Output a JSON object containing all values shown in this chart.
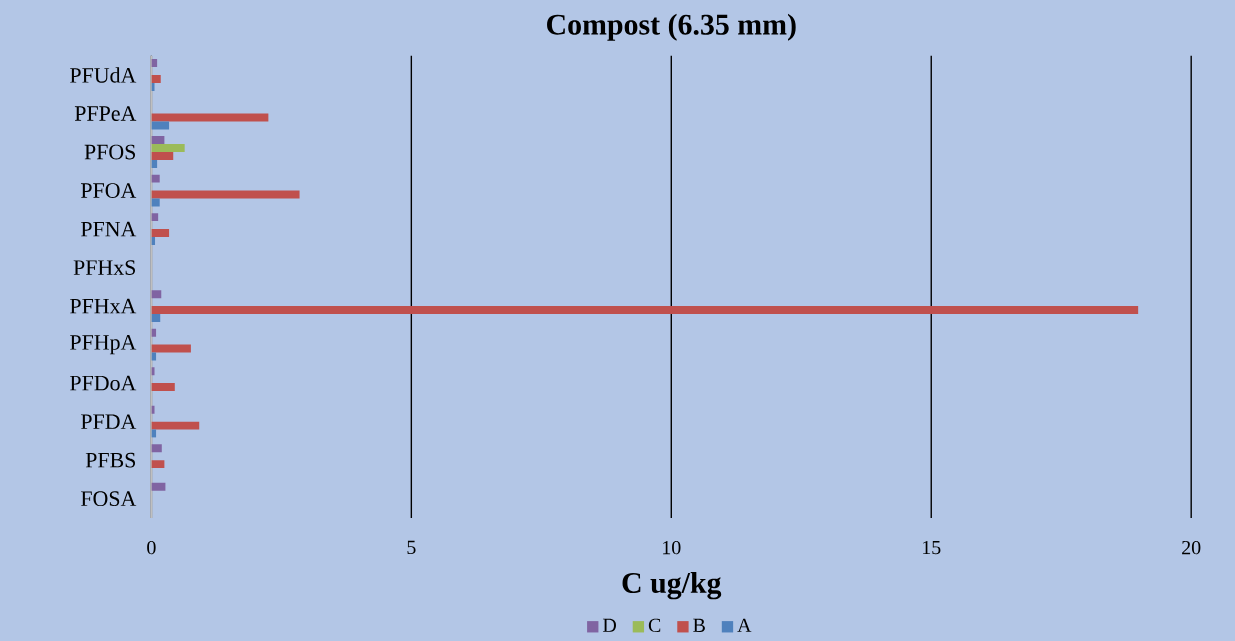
{
  "chart_data": {
    "type": "bar",
    "orientation": "horizontal",
    "title": "Compost (6.35 mm)",
    "xlabel": "C ug/kg",
    "categories": [
      "PFUdA",
      "PFPeA",
      "PFOS",
      "PFOA",
      "PFNA",
      "PFHxS",
      "PFHxA",
      "PFHpA",
      "PFDoA",
      "PFDA",
      "PFBS",
      "FOSA"
    ],
    "series": [
      {
        "name": "D",
        "color": "#8064a2",
        "values": [
          0.11,
          null,
          0.25,
          0.16,
          0.13,
          null,
          0.19,
          0.09,
          0.06,
          0.06,
          0.2,
          0.27
        ]
      },
      {
        "name": "C",
        "color": "#9bbb59",
        "values": [
          null,
          null,
          0.64,
          null,
          null,
          null,
          null,
          null,
          null,
          null,
          null,
          null
        ]
      },
      {
        "name": "B",
        "color": "#c0504d",
        "values": [
          0.18,
          2.25,
          0.42,
          2.85,
          0.34,
          null,
          18.98,
          0.76,
          0.45,
          0.92,
          0.25,
          null
        ]
      },
      {
        "name": "A",
        "color": "#4f81bd",
        "values": [
          0.06,
          0.34,
          0.11,
          0.16,
          0.07,
          null,
          0.17,
          0.09,
          null,
          0.09,
          null,
          null
        ]
      }
    ],
    "xlim": [
      0,
      20
    ],
    "xticks": [
      0,
      5,
      10,
      15,
      20
    ],
    "grid": "x",
    "legend": "bottom"
  }
}
